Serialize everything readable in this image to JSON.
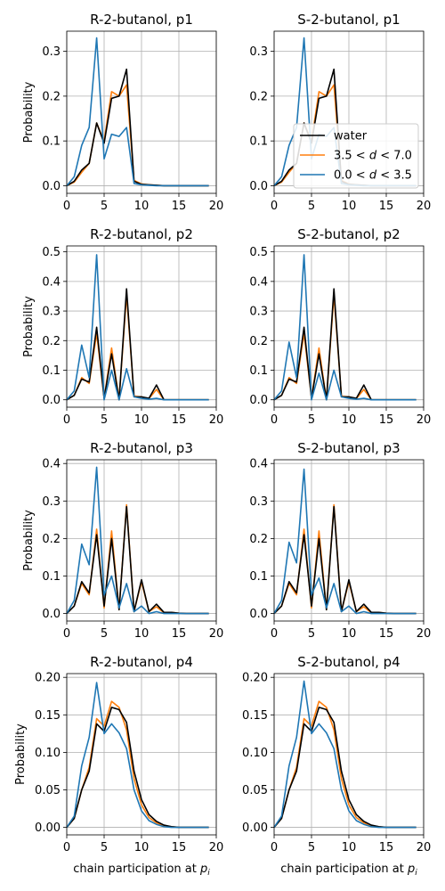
{
  "figure": {
    "ylabel": "Probability",
    "xlabel_prefix": "chain participation at ",
    "xlabel_var": "p",
    "xlabel_sub": "i"
  },
  "legend": {
    "placement": "lower-right of top-right panel",
    "entries": [
      {
        "key": "water",
        "parts": [
          {
            "t": "water"
          }
        ]
      },
      {
        "key": "mid",
        "parts": [
          {
            "t": "3.5 < "
          },
          {
            "t": "d",
            "italic": true
          },
          {
            "t": " < 7.0"
          }
        ]
      },
      {
        "key": "near",
        "parts": [
          {
            "t": "0.0 < "
          },
          {
            "t": "d",
            "italic": true
          },
          {
            "t": " < 3.5"
          }
        ]
      }
    ]
  },
  "colors": {
    "water": "#000000",
    "mid": "#ff7f0e",
    "near": "#1f77b4",
    "grid": "#b0b0b0"
  },
  "chart_data": [
    {
      "type": "line",
      "title": "R-2-butanol, p1",
      "x": [
        0,
        1,
        2,
        3,
        4,
        5,
        6,
        7,
        8,
        9,
        10,
        11,
        12,
        13,
        14,
        15,
        16,
        17,
        18,
        19
      ],
      "xlim": [
        0,
        20
      ],
      "ylim": [
        -0.017,
        0.345
      ],
      "xticks": [
        0,
        5,
        10,
        15,
        20
      ],
      "yticks": [
        0.0,
        0.1,
        0.2,
        0.3
      ],
      "ytick_labels": [
        "0.0",
        "0.1",
        "0.2",
        "0.3"
      ],
      "grid": true,
      "series": [
        {
          "key": "water",
          "values": [
            0,
            0.01,
            0.035,
            0.05,
            0.14,
            0.095,
            0.195,
            0.2,
            0.26,
            0.01,
            0.003,
            0.002,
            0.001,
            0,
            0,
            0,
            0,
            0,
            0,
            0
          ]
        },
        {
          "key": "mid",
          "values": [
            0,
            0.008,
            0.03,
            0.05,
            0.14,
            0.1,
            0.21,
            0.2,
            0.225,
            0.012,
            0.004,
            0.002,
            0.001,
            0,
            0,
            0,
            0,
            0,
            0,
            0
          ]
        },
        {
          "key": "near",
          "values": [
            0,
            0.02,
            0.09,
            0.13,
            0.33,
            0.06,
            0.115,
            0.11,
            0.13,
            0.005,
            0.002,
            0.001,
            0,
            0,
            0,
            0,
            0,
            0,
            0,
            0
          ]
        }
      ]
    },
    {
      "type": "line",
      "title": "S-2-butanol, p1",
      "x": [
        0,
        1,
        2,
        3,
        4,
        5,
        6,
        7,
        8,
        9,
        10,
        11,
        12,
        13,
        14,
        15,
        16,
        17,
        18,
        19
      ],
      "xlim": [
        0,
        20
      ],
      "ylim": [
        -0.017,
        0.345
      ],
      "xticks": [
        0,
        5,
        10,
        15,
        20
      ],
      "yticks": [
        0.0,
        0.1,
        0.2,
        0.3
      ],
      "ytick_labels": [
        "0.0",
        "0.1",
        "0.2",
        "0.3"
      ],
      "grid": true,
      "series": [
        {
          "key": "water",
          "values": [
            0,
            0.01,
            0.035,
            0.05,
            0.14,
            0.095,
            0.195,
            0.2,
            0.26,
            0.01,
            0.003,
            0.002,
            0.001,
            0,
            0,
            0,
            0,
            0,
            0,
            0
          ]
        },
        {
          "key": "mid",
          "values": [
            0,
            0.008,
            0.03,
            0.05,
            0.14,
            0.1,
            0.21,
            0.2,
            0.225,
            0.012,
            0.004,
            0.002,
            0.001,
            0,
            0,
            0,
            0,
            0,
            0,
            0
          ]
        },
        {
          "key": "near",
          "values": [
            0,
            0.02,
            0.09,
            0.13,
            0.33,
            0.06,
            0.115,
            0.11,
            0.13,
            0.005,
            0.002,
            0.001,
            0,
            0,
            0,
            0,
            0,
            0,
            0,
            0
          ]
        }
      ]
    },
    {
      "type": "line",
      "title": "R-2-butanol, p2",
      "x": [
        0,
        1,
        2,
        3,
        4,
        5,
        6,
        7,
        8,
        9,
        10,
        11,
        12,
        13,
        14,
        15,
        16,
        17,
        18,
        19
      ],
      "xlim": [
        0,
        20
      ],
      "ylim": [
        -0.025,
        0.52
      ],
      "xticks": [
        0,
        5,
        10,
        15,
        20
      ],
      "yticks": [
        0.0,
        0.1,
        0.2,
        0.3,
        0.4,
        0.5
      ],
      "ytick_labels": [
        "0.0",
        "0.1",
        "0.2",
        "0.3",
        "0.4",
        "0.5"
      ],
      "grid": true,
      "series": [
        {
          "key": "water",
          "values": [
            0,
            0.015,
            0.07,
            0.06,
            0.245,
            0.005,
            0.155,
            0,
            0.375,
            0.01,
            0.01,
            0.005,
            0.05,
            0,
            0,
            0,
            0,
            0,
            0,
            0
          ]
        },
        {
          "key": "mid",
          "values": [
            0,
            0.015,
            0.075,
            0.055,
            0.225,
            0.005,
            0.175,
            0,
            0.355,
            0.012,
            0.01,
            0.004,
            0.035,
            0,
            0,
            0,
            0,
            0,
            0,
            0
          ]
        },
        {
          "key": "near",
          "values": [
            0,
            0.03,
            0.185,
            0.075,
            0.49,
            0,
            0.1,
            0,
            0.105,
            0.01,
            0.005,
            0.002,
            0.005,
            0,
            0,
            0,
            0,
            0,
            0,
            0
          ]
        }
      ]
    },
    {
      "type": "line",
      "title": "S-2-butanol, p2",
      "x": [
        0,
        1,
        2,
        3,
        4,
        5,
        6,
        7,
        8,
        9,
        10,
        11,
        12,
        13,
        14,
        15,
        16,
        17,
        18,
        19
      ],
      "xlim": [
        0,
        20
      ],
      "ylim": [
        -0.025,
        0.52
      ],
      "xticks": [
        0,
        5,
        10,
        15,
        20
      ],
      "yticks": [
        0.0,
        0.1,
        0.2,
        0.3,
        0.4,
        0.5
      ],
      "ytick_labels": [
        "0.0",
        "0.1",
        "0.2",
        "0.3",
        "0.4",
        "0.5"
      ],
      "grid": true,
      "series": [
        {
          "key": "water",
          "values": [
            0,
            0.015,
            0.07,
            0.06,
            0.245,
            0.005,
            0.155,
            0,
            0.375,
            0.01,
            0.01,
            0.005,
            0.05,
            0,
            0,
            0,
            0,
            0,
            0,
            0
          ]
        },
        {
          "key": "mid",
          "values": [
            0,
            0.015,
            0.075,
            0.055,
            0.225,
            0.005,
            0.175,
            0,
            0.355,
            0.012,
            0.01,
            0.004,
            0.035,
            0,
            0,
            0,
            0,
            0,
            0,
            0
          ]
        },
        {
          "key": "near",
          "values": [
            0,
            0.03,
            0.195,
            0.075,
            0.49,
            0,
            0.09,
            0,
            0.1,
            0.01,
            0.005,
            0.002,
            0.005,
            0,
            0,
            0,
            0,
            0,
            0,
            0
          ]
        }
      ]
    },
    {
      "type": "line",
      "title": "R-2-butanol, p3",
      "x": [
        0,
        1,
        2,
        3,
        4,
        5,
        6,
        7,
        8,
        9,
        10,
        11,
        12,
        13,
        14,
        15,
        16,
        17,
        18,
        19
      ],
      "xlim": [
        0,
        20
      ],
      "ylim": [
        -0.02,
        0.41
      ],
      "xticks": [
        0,
        5,
        10,
        15,
        20
      ],
      "yticks": [
        0.0,
        0.1,
        0.2,
        0.3,
        0.4
      ],
      "ytick_labels": [
        "0.0",
        "0.1",
        "0.2",
        "0.3",
        "0.4"
      ],
      "grid": true,
      "series": [
        {
          "key": "water",
          "values": [
            0,
            0.02,
            0.085,
            0.055,
            0.21,
            0.02,
            0.2,
            0.01,
            0.285,
            0.005,
            0.09,
            0.005,
            0.025,
            0.003,
            0.003,
            0.001,
            0,
            0,
            0,
            0
          ]
        },
        {
          "key": "mid",
          "values": [
            0,
            0.02,
            0.08,
            0.05,
            0.225,
            0.015,
            0.22,
            0.01,
            0.29,
            0.005,
            0.085,
            0.005,
            0.018,
            0.002,
            0.003,
            0.001,
            0,
            0,
            0,
            0
          ]
        },
        {
          "key": "near",
          "values": [
            0,
            0.035,
            0.185,
            0.13,
            0.39,
            0.05,
            0.1,
            0.015,
            0.08,
            0.005,
            0.02,
            0,
            0.005,
            0,
            0,
            0,
            0,
            0,
            0,
            0
          ]
        }
      ]
    },
    {
      "type": "line",
      "title": "S-2-butanol, p3",
      "x": [
        0,
        1,
        2,
        3,
        4,
        5,
        6,
        7,
        8,
        9,
        10,
        11,
        12,
        13,
        14,
        15,
        16,
        17,
        18,
        19
      ],
      "xlim": [
        0,
        20
      ],
      "ylim": [
        -0.02,
        0.41
      ],
      "xticks": [
        0,
        5,
        10,
        15,
        20
      ],
      "yticks": [
        0.0,
        0.1,
        0.2,
        0.3,
        0.4
      ],
      "ytick_labels": [
        "0.0",
        "0.1",
        "0.2",
        "0.3",
        "0.4"
      ],
      "grid": true,
      "series": [
        {
          "key": "water",
          "values": [
            0,
            0.02,
            0.085,
            0.055,
            0.21,
            0.02,
            0.2,
            0.01,
            0.285,
            0.005,
            0.09,
            0.005,
            0.025,
            0.003,
            0.003,
            0.001,
            0,
            0,
            0,
            0
          ]
        },
        {
          "key": "mid",
          "values": [
            0,
            0.02,
            0.08,
            0.05,
            0.225,
            0.015,
            0.22,
            0.01,
            0.29,
            0.005,
            0.085,
            0.005,
            0.018,
            0.002,
            0.003,
            0.001,
            0,
            0,
            0,
            0
          ]
        },
        {
          "key": "near",
          "values": [
            0,
            0.035,
            0.19,
            0.135,
            0.385,
            0.05,
            0.095,
            0.015,
            0.08,
            0.005,
            0.02,
            0,
            0.005,
            0,
            0,
            0,
            0,
            0,
            0,
            0
          ]
        }
      ]
    },
    {
      "type": "line",
      "title": "R-2-butanol, p4",
      "x": [
        0,
        1,
        2,
        3,
        4,
        5,
        6,
        7,
        8,
        9,
        10,
        11,
        12,
        13,
        14,
        15,
        16,
        17,
        18,
        19
      ],
      "xlim": [
        0,
        20
      ],
      "ylim": [
        -0.01,
        0.205
      ],
      "xticks": [
        0,
        5,
        10,
        15,
        20
      ],
      "yticks": [
        0.0,
        0.05,
        0.1,
        0.15,
        0.2
      ],
      "ytick_labels": [
        "0.00",
        "0.05",
        "0.10",
        "0.15",
        "0.20"
      ],
      "grid": true,
      "series": [
        {
          "key": "water",
          "values": [
            0,
            0.012,
            0.05,
            0.075,
            0.138,
            0.128,
            0.16,
            0.157,
            0.14,
            0.075,
            0.037,
            0.017,
            0.008,
            0.003,
            0.001,
            0,
            0,
            0,
            0,
            0
          ]
        },
        {
          "key": "mid",
          "values": [
            0,
            0.012,
            0.05,
            0.08,
            0.145,
            0.135,
            0.168,
            0.16,
            0.13,
            0.065,
            0.03,
            0.013,
            0.006,
            0.002,
            0.001,
            0,
            0,
            0,
            0,
            0
          ]
        },
        {
          "key": "near",
          "values": [
            0,
            0.015,
            0.082,
            0.12,
            0.193,
            0.125,
            0.138,
            0.126,
            0.105,
            0.05,
            0.022,
            0.009,
            0.004,
            0.001,
            0,
            0,
            0,
            0,
            0,
            0
          ]
        }
      ]
    },
    {
      "type": "line",
      "title": "S-2-butanol, p4",
      "x": [
        0,
        1,
        2,
        3,
        4,
        5,
        6,
        7,
        8,
        9,
        10,
        11,
        12,
        13,
        14,
        15,
        16,
        17,
        18,
        19
      ],
      "xlim": [
        0,
        20
      ],
      "ylim": [
        -0.01,
        0.205
      ],
      "xticks": [
        0,
        5,
        10,
        15,
        20
      ],
      "yticks": [
        0.0,
        0.05,
        0.1,
        0.15,
        0.2
      ],
      "ytick_labels": [
        "0.00",
        "0.05",
        "0.10",
        "0.15",
        "0.20"
      ],
      "grid": true,
      "series": [
        {
          "key": "water",
          "values": [
            0,
            0.012,
            0.05,
            0.075,
            0.138,
            0.128,
            0.16,
            0.157,
            0.14,
            0.075,
            0.037,
            0.017,
            0.008,
            0.003,
            0.001,
            0,
            0,
            0,
            0,
            0
          ]
        },
        {
          "key": "mid",
          "values": [
            0,
            0.012,
            0.05,
            0.08,
            0.145,
            0.135,
            0.168,
            0.16,
            0.13,
            0.065,
            0.03,
            0.013,
            0.006,
            0.002,
            0.001,
            0,
            0,
            0,
            0,
            0
          ]
        },
        {
          "key": "near",
          "values": [
            0,
            0.015,
            0.082,
            0.12,
            0.195,
            0.125,
            0.138,
            0.126,
            0.105,
            0.05,
            0.022,
            0.009,
            0.004,
            0.001,
            0,
            0,
            0,
            0,
            0,
            0
          ]
        }
      ]
    }
  ]
}
